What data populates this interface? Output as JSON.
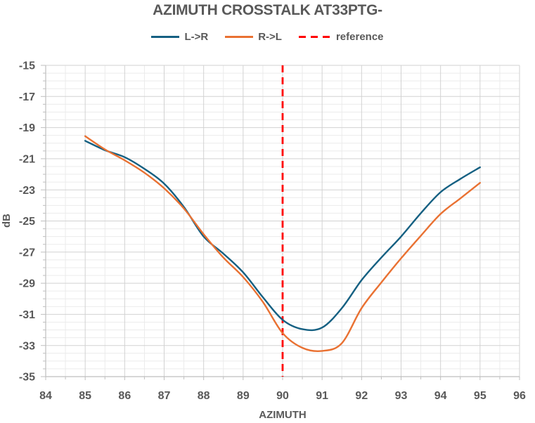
{
  "title": "AZIMUTH CROSSTALK AT33PTG-",
  "colors": {
    "series_lr": "#156082",
    "series_rl": "#E97132",
    "reference": "#FF0000",
    "text": "#595959",
    "axis_line": "#BFBFBF",
    "grid_major": "#D2D2D2",
    "grid_minor": "#EBEBEB"
  },
  "legend": [
    {
      "label": "L->R",
      "color": "#156082",
      "dashed": false
    },
    {
      "label": "R->L",
      "color": "#E97132",
      "dashed": false
    },
    {
      "label": "reference",
      "color": "#FF0000",
      "dashed": true
    }
  ],
  "axes": {
    "x": {
      "title": "AZIMUTH",
      "min": 84,
      "max": 96,
      "major_step": 1,
      "minor_step": 0.5,
      "tick_labels": [
        "84",
        "85",
        "86",
        "87",
        "88",
        "89",
        "90",
        "91",
        "92",
        "93",
        "94",
        "95",
        "96"
      ]
    },
    "y": {
      "title": "dB",
      "min": -35,
      "max": -15,
      "major_step": 2,
      "minor_step": 0.5,
      "tick_labels": [
        "-15",
        "-17",
        "-19",
        "-21",
        "-23",
        "-25",
        "-27",
        "-29",
        "-31",
        "-33",
        "-35"
      ]
    }
  },
  "chart_data": {
    "type": "line",
    "title": "AZIMUTH CROSSTALK AT33PTG-",
    "xlabel": "AZIMUTH",
    "ylabel": "dB",
    "xlim": [
      84,
      96
    ],
    "ylim": [
      -35,
      -15
    ],
    "grid": true,
    "legend_position": "top",
    "x": [
      85,
      85.5,
      86,
      86.5,
      87,
      87.5,
      88,
      88.5,
      89,
      89.5,
      90,
      90.5,
      91,
      91.5,
      92,
      92.5,
      93,
      93.5,
      94,
      94.5,
      95
    ],
    "series": [
      {
        "name": "L->R",
        "color": "#156082",
        "smooth": true,
        "values": [
          -19.85,
          -20.45,
          -20.9,
          -21.65,
          -22.6,
          -24.1,
          -26.0,
          -27.1,
          -28.3,
          -29.9,
          -31.35,
          -31.95,
          -31.85,
          -30.6,
          -28.8,
          -27.35,
          -26.0,
          -24.5,
          -23.15,
          -22.3,
          -21.55
        ]
      },
      {
        "name": "R->L",
        "color": "#E97132",
        "smooth": true,
        "values": [
          -19.55,
          -20.4,
          -21.1,
          -21.9,
          -22.9,
          -24.2,
          -25.85,
          -27.35,
          -28.6,
          -30.2,
          -32.2,
          -33.15,
          -33.35,
          -32.85,
          -30.6,
          -28.95,
          -27.4,
          -25.95,
          -24.55,
          -23.55,
          -22.55
        ]
      }
    ],
    "reference_line": {
      "name": "reference",
      "x": 90,
      "color": "#FF0000",
      "style": "dashed"
    }
  }
}
